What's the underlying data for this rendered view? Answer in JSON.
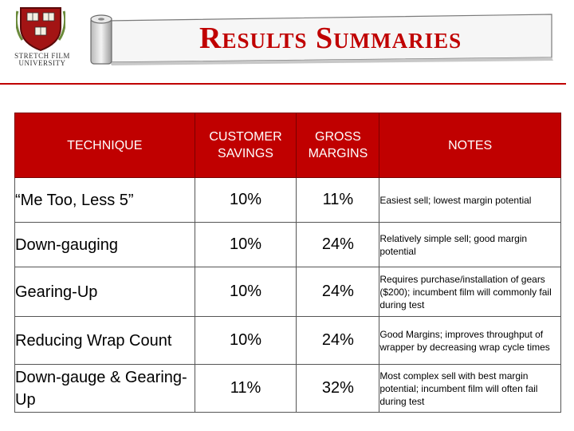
{
  "header": {
    "title": "Results Summaries",
    "logo_line1": "Stretch Film",
    "logo_line2": "University",
    "colors": {
      "accent": "#c00000",
      "header_bg": "#c00000",
      "header_text": "#ffffff"
    }
  },
  "table": {
    "columns": [
      "TECHNIQUE",
      "CUSTOMER SAVINGS",
      "GROSS MARGINS",
      "NOTES"
    ],
    "rows": [
      {
        "technique": "“Me Too, Less 5”",
        "savings": "10%",
        "margins": "11%",
        "notes": "Easiest sell; lowest margin potential"
      },
      {
        "technique": "Down-gauging",
        "savings": "10%",
        "margins": "24%",
        "notes": "Relatively simple sell; good margin potential"
      },
      {
        "technique": "Gearing-Up",
        "savings": "10%",
        "margins": "24%",
        "notes": "Requires purchase/installation of gears ($200); incumbent film will commonly fail during test"
      },
      {
        "technique": "Reducing Wrap Count",
        "savings": "10%",
        "margins": "24%",
        "notes": "Good Margins; improves throughput of wrapper by decreasing wrap cycle times"
      },
      {
        "technique": "Down-gauge & Gearing-Up",
        "savings": "11%",
        "margins": "32%",
        "notes": "Most complex sell with best margin potential; incumbent film will often fail during test"
      }
    ]
  }
}
